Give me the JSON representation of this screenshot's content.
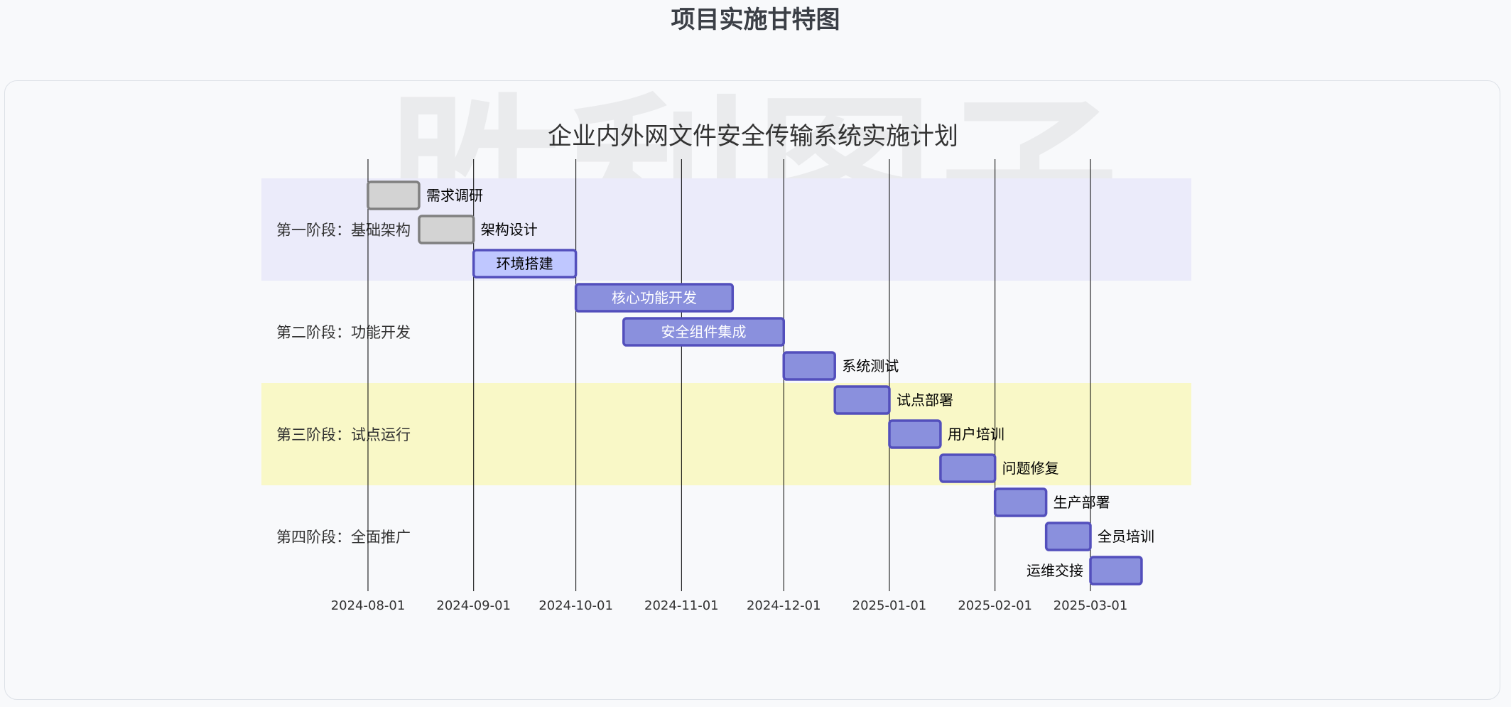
{
  "page": {
    "title": "项目实施甘特图"
  },
  "watermark": "胜利图子",
  "chart_data": {
    "type": "gantt",
    "title": "企业内外网文件安全传输系统实施计划",
    "x_ticks": [
      "2024-08-01",
      "2024-09-01",
      "2024-10-01",
      "2024-11-01",
      "2024-12-01",
      "2025-01-01",
      "2025-02-01",
      "2025-03-01"
    ],
    "sections": [
      {
        "name": "第一阶段：基础架构",
        "color": "#ebebfa"
      },
      {
        "name": "第二阶段：功能开发",
        "color": "#f8f9fb"
      },
      {
        "name": "第三阶段：试点运行",
        "color": "#f9f8c7"
      },
      {
        "name": "第四阶段：全面推广",
        "color": "#f8f9fb"
      }
    ],
    "tasks": [
      {
        "name": "需求调研",
        "section": 0,
        "start": "2024-08-01",
        "end": "2024-08-15",
        "status": "done"
      },
      {
        "name": "架构设计",
        "section": 0,
        "start": "2024-08-16",
        "end": "2024-08-31",
        "status": "done"
      },
      {
        "name": "环境搭建",
        "section": 0,
        "start": "2024-09-01",
        "end": "2024-09-30",
        "status": "active"
      },
      {
        "name": "核心功能开发",
        "section": 1,
        "start": "2024-10-01",
        "end": "2024-11-15",
        "status": "planned"
      },
      {
        "name": "安全组件集成",
        "section": 1,
        "start": "2024-10-15",
        "end": "2024-11-30",
        "status": "planned"
      },
      {
        "name": "系统测试",
        "section": 1,
        "start": "2024-12-01",
        "end": "2024-12-15",
        "status": "planned"
      },
      {
        "name": "试点部署",
        "section": 2,
        "start": "2024-12-16",
        "end": "2024-12-31",
        "status": "planned"
      },
      {
        "name": "用户培训",
        "section": 2,
        "start": "2025-01-01",
        "end": "2025-01-15",
        "status": "planned"
      },
      {
        "name": "问题修复",
        "section": 2,
        "start": "2025-01-16",
        "end": "2025-01-31",
        "status": "planned"
      },
      {
        "name": "生产部署",
        "section": 3,
        "start": "2025-02-01",
        "end": "2025-02-15",
        "status": "planned"
      },
      {
        "name": "全员培训",
        "section": 3,
        "start": "2025-02-16",
        "end": "2025-02-28",
        "status": "planned"
      },
      {
        "name": "运维交接",
        "section": 3,
        "start": "2025-03-01",
        "end": "2025-03-15",
        "status": "planned"
      }
    ],
    "styles": {
      "done": {
        "fill": "#d3d3d3",
        "stroke": "#808080",
        "text": "#000000"
      },
      "active": {
        "fill": "#bfc7ff",
        "stroke": "#534fbc",
        "text": "#000000"
      },
      "planned": {
        "fill": "#8a90dd",
        "stroke": "#534fbc",
        "text": "#ffffff"
      },
      "outside_text": "#000000",
      "grid": "#000000"
    }
  }
}
